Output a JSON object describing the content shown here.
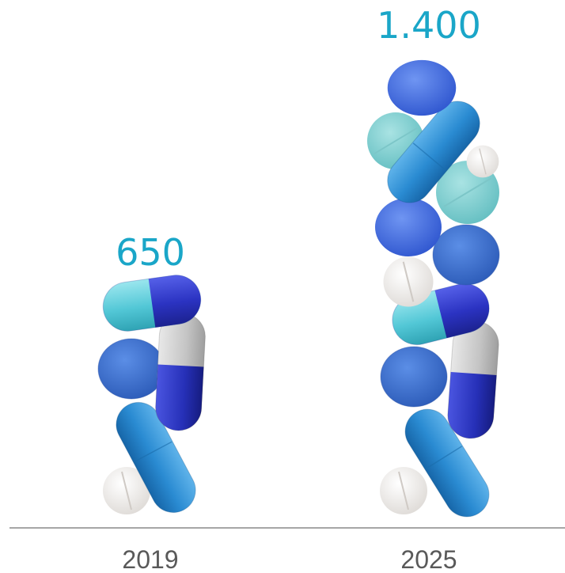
{
  "chart_data": {
    "type": "bar",
    "categories": [
      "2019",
      "2025"
    ],
    "values": [
      650,
      1400
    ],
    "value_labels": [
      "650",
      "1.400"
    ],
    "title": "",
    "xlabel": "",
    "ylabel": "",
    "ylim": [
      0,
      1400
    ],
    "grid": false,
    "legend": "none"
  },
  "colors": {
    "value_label": "#1aa6c8",
    "category_label": "#595959",
    "baseline": "#a6a6a6",
    "pill_blue_dark": "#2a35c4",
    "pill_blue_mid": "#3f6fe0",
    "pill_blue_light": "#2d8fd6",
    "pill_cyan": "#5fd0dc",
    "pill_grey": "#c9c9c9",
    "tablet_white": "#f2f0ee",
    "tablet_teal": "#7fcfd0"
  }
}
